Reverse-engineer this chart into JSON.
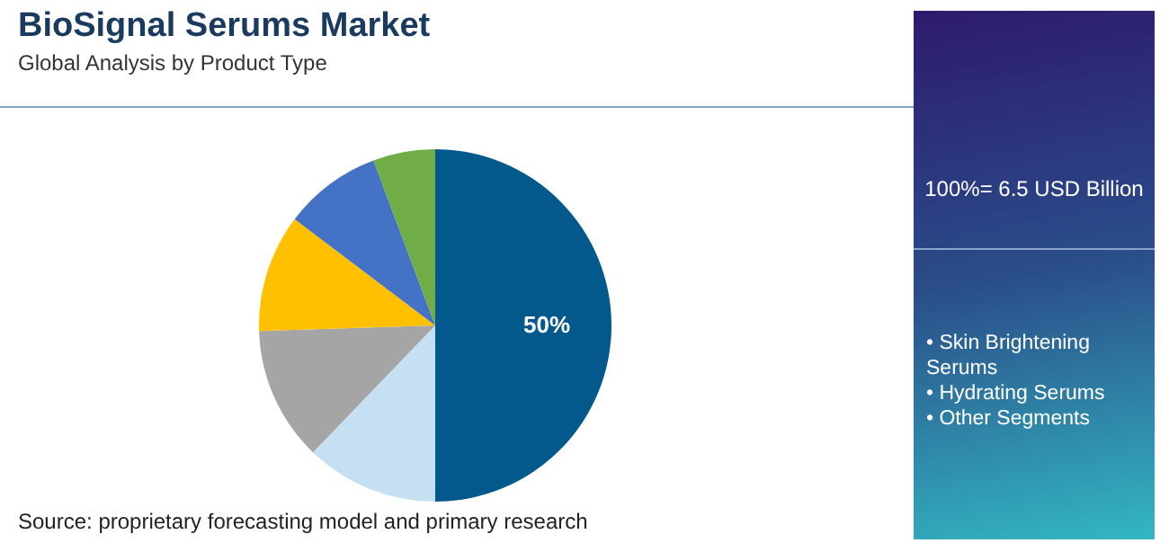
{
  "chart_data": {
    "type": "pie",
    "title": "BioSignal Serums Market",
    "subtitle": "Global Analysis by Product Type",
    "categories": [
      null,
      null,
      null,
      null,
      null,
      null
    ],
    "values": [
      50,
      12.2,
      12.3,
      10.8,
      9,
      5.7
    ],
    "colors": [
      "#03588c",
      "#c5e0f2",
      "#a5a5a5",
      "#ffc000",
      "#4472c4",
      "#70ad47"
    ],
    "value_labels": [
      "50%",
      null,
      null,
      null,
      null,
      null
    ],
    "annotations": [
      "100%= 6.5 USD Billion",
      "• Skin Brightening Serums",
      "• Hydrating Serums",
      "• Other Segments",
      "Source: proprietary forecasting model and primary research"
    ]
  }
}
